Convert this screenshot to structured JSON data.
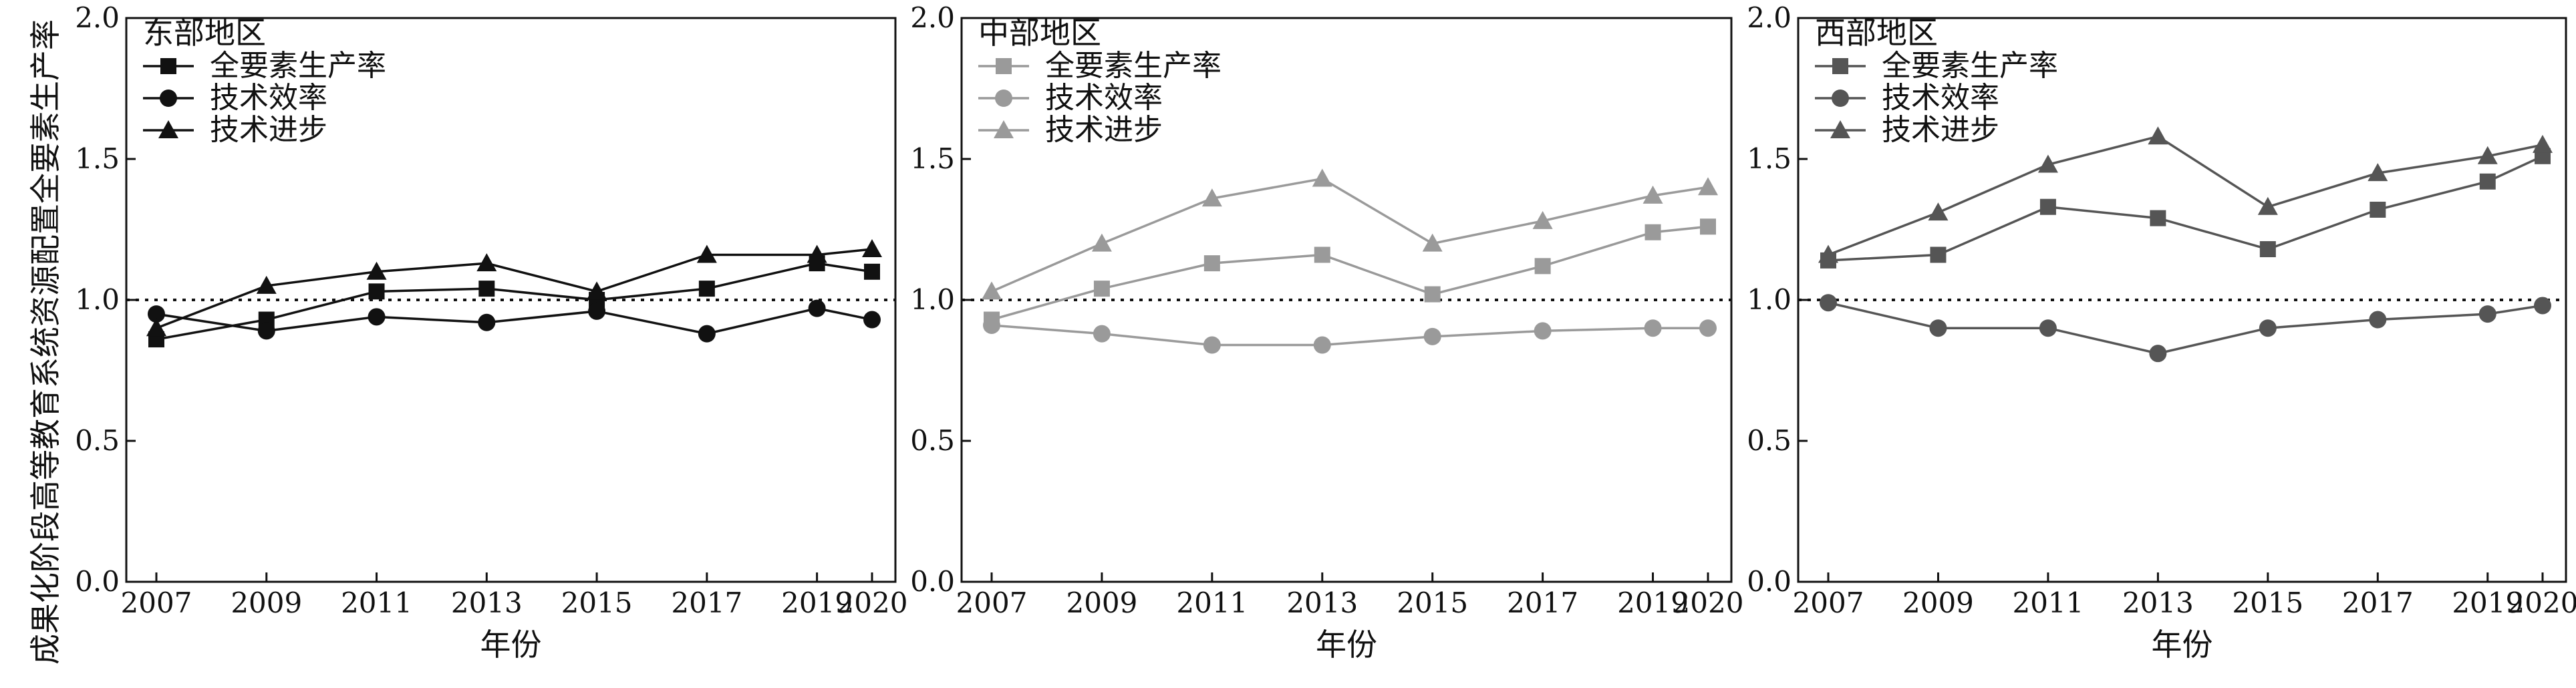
{
  "chart_data": {
    "type": "line",
    "ylabel": "成果化阶段高等教育系统资源配置全要素生产率",
    "xlabel": "年份",
    "ylim": [
      0.0,
      2.0
    ],
    "yticks": [
      "0.0",
      "0.5",
      "1.0",
      "1.5",
      "2.0"
    ],
    "reference_line": 1.0,
    "x": [
      2007,
      2009,
      2011,
      2013,
      2015,
      2017,
      2019,
      2020
    ],
    "xticks": [
      "2007",
      "2009",
      "2011",
      "2013",
      "2015",
      "2017",
      "2019",
      "2020"
    ],
    "legend_placement": "top-left",
    "panels": [
      {
        "title": "东部地区",
        "color": "#111111",
        "series": [
          {
            "name": "全要素生产率",
            "marker": "square",
            "values": [
              0.86,
              0.93,
              1.03,
              1.04,
              1.0,
              1.04,
              1.13,
              1.1
            ]
          },
          {
            "name": "技术效率",
            "marker": "circle",
            "values": [
              0.95,
              0.89,
              0.94,
              0.92,
              0.96,
              0.88,
              0.97,
              0.93
            ]
          },
          {
            "name": "技术进步",
            "marker": "triangle",
            "values": [
              0.9,
              1.05,
              1.1,
              1.13,
              1.03,
              1.16,
              1.16,
              1.18
            ]
          }
        ]
      },
      {
        "title": "中部地区",
        "color": "#9a9a9a",
        "series": [
          {
            "name": "全要素生产率",
            "marker": "square",
            "values": [
              0.93,
              1.04,
              1.13,
              1.16,
              1.02,
              1.12,
              1.24,
              1.26
            ]
          },
          {
            "name": "技术效率",
            "marker": "circle",
            "values": [
              0.91,
              0.88,
              0.84,
              0.84,
              0.87,
              0.89,
              0.9,
              0.9
            ]
          },
          {
            "name": "技术进步",
            "marker": "triangle",
            "values": [
              1.03,
              1.2,
              1.36,
              1.43,
              1.2,
              1.28,
              1.37,
              1.4
            ]
          }
        ]
      },
      {
        "title": "西部地区",
        "color": "#555555",
        "series": [
          {
            "name": "全要素生产率",
            "marker": "square",
            "values": [
              1.14,
              1.16,
              1.33,
              1.29,
              1.18,
              1.32,
              1.42,
              1.51
            ]
          },
          {
            "name": "技术效率",
            "marker": "circle",
            "values": [
              0.99,
              0.9,
              0.9,
              0.81,
              0.9,
              0.93,
              0.95,
              0.98
            ]
          },
          {
            "name": "技术进步",
            "marker": "triangle",
            "values": [
              1.16,
              1.31,
              1.48,
              1.58,
              1.33,
              1.45,
              1.51,
              1.55
            ]
          }
        ]
      }
    ]
  }
}
